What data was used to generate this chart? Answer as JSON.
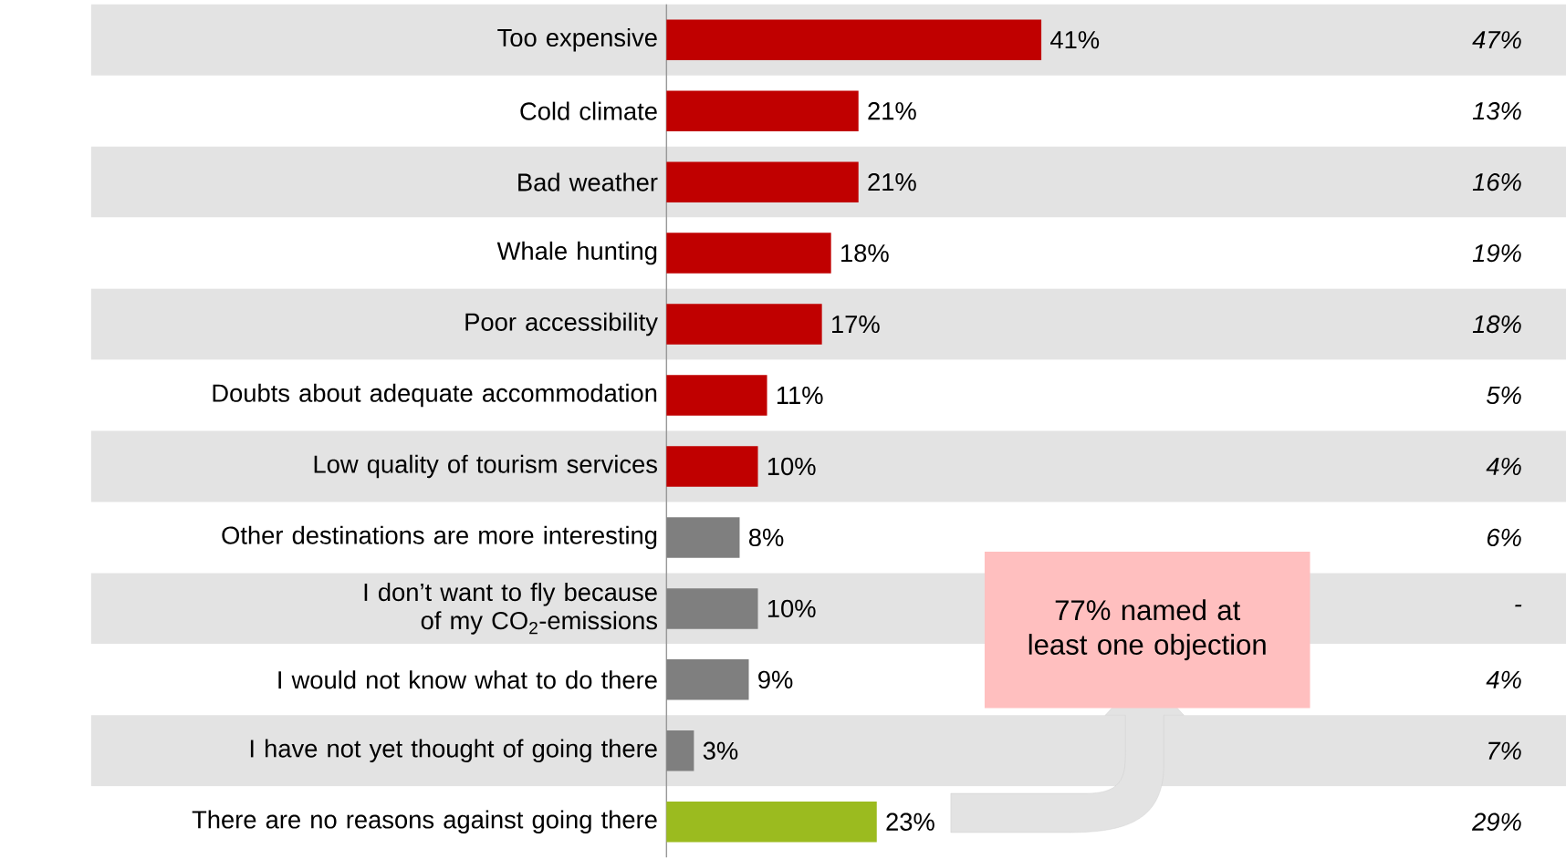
{
  "chart_data": {
    "type": "bar",
    "orientation": "horizontal",
    "categories": [
      "Too expensive",
      "Cold climate",
      "Bad weather",
      "Whale hunting",
      "Poor accessibility",
      "Doubts about adequate accommodation",
      "Low quality of tourism services",
      "Other destinations are more interesting",
      "I don’t want to fly because of my CO$_{2}$-emissions",
      "I would not know what to do there",
      "I have not yet thought of going there",
      "There are no reasons against going there"
    ],
    "values": [
      41,
      21,
      21,
      18,
      17,
      11,
      10,
      8,
      10,
      9,
      3,
      23
    ],
    "colors": [
      "#c00000",
      "#c00000",
      "#c00000",
      "#c00000",
      "#c00000",
      "#c00000",
      "#c00000",
      "#7f7f7f",
      "#7f7f7f",
      "#7f7f7f",
      "#7f7f7f",
      "#9bbb1f"
    ],
    "value_labels": [
      "41%",
      "21%",
      "21%",
      "18%",
      "17%",
      "11%",
      "10%",
      "8%",
      "10%",
      "9%",
      "3%",
      "23%"
    ],
    "annotations": [
      "47%",
      "13%",
      "16%",
      "19%",
      "18%",
      "5%",
      "4%",
      "6%",
      "-",
      "4%",
      "7%",
      "29%",
      "77% named at least one objection"
    ]
  }
}
